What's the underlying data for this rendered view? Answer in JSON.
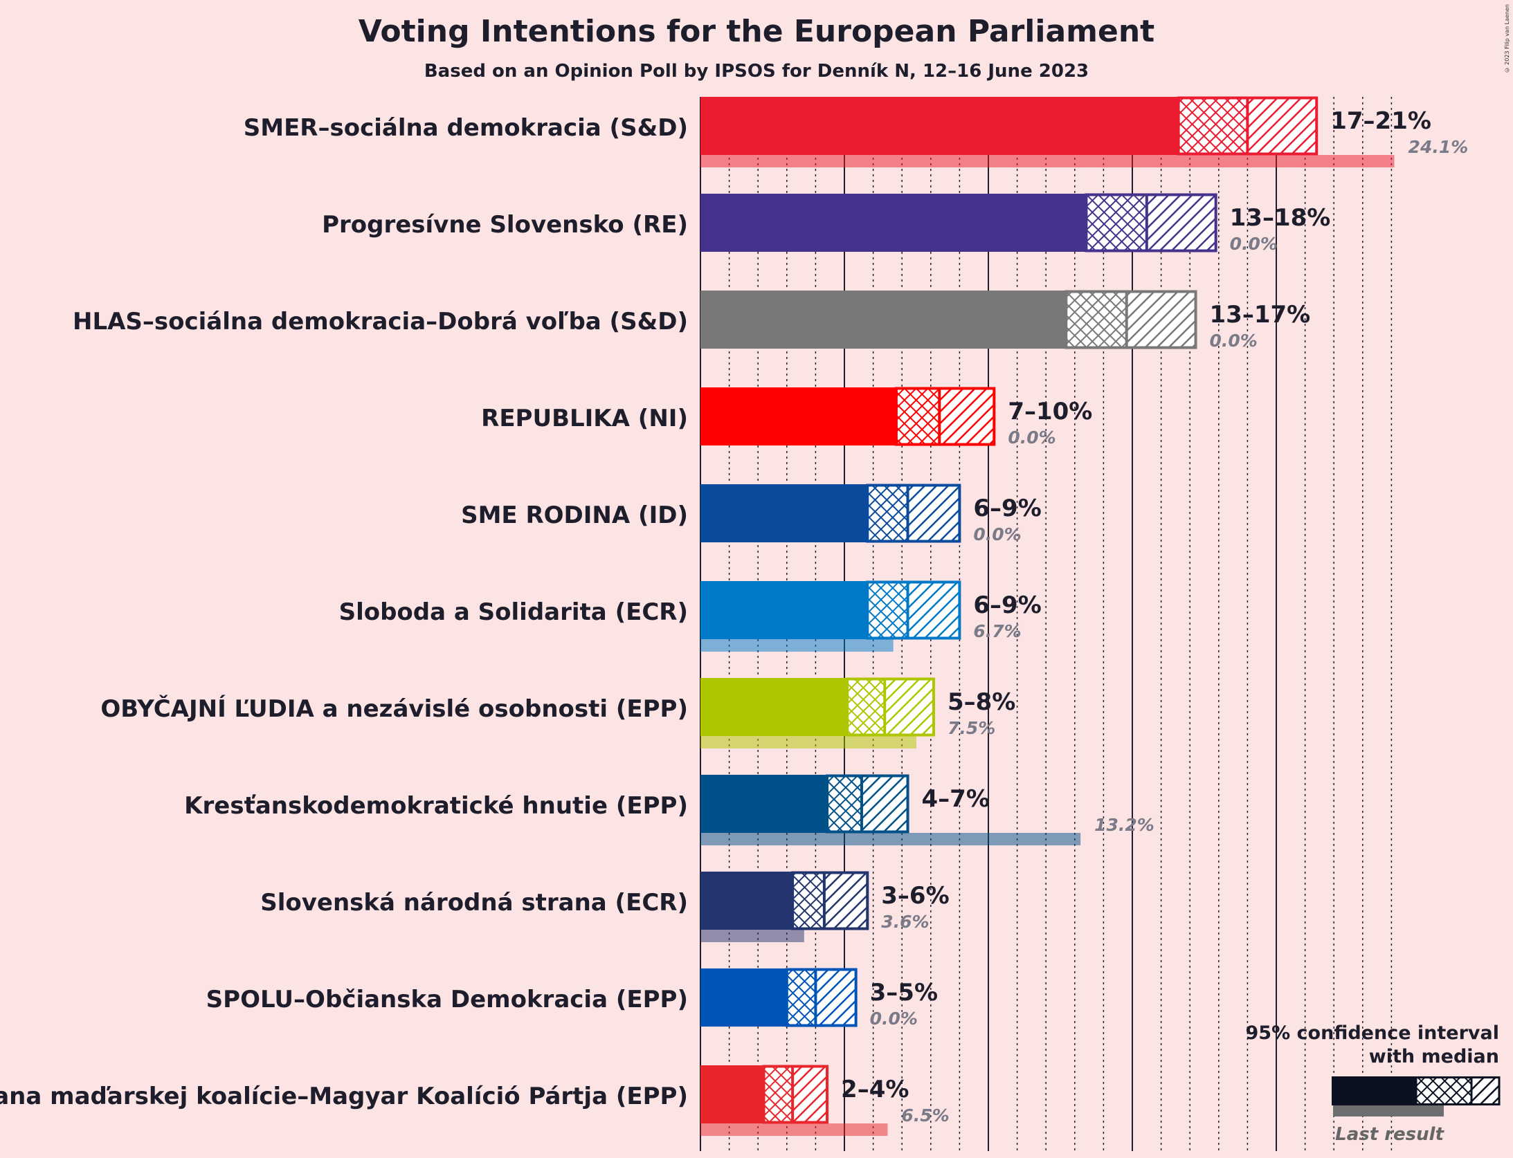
{
  "title": "Voting Intentions for the European Parliament",
  "subtitle": "Based on an Opinion Poll by IPSOS for Denník N, 12–16 June 2023",
  "copyright": "© 2023 Filip van Laenen",
  "legend": {
    "title_line1": "95% confidence interval",
    "title_line2": "with median",
    "last_result": "Last result"
  },
  "chart_data": {
    "type": "bar",
    "orientation": "horizontal",
    "x_unit": "%",
    "xlim": [
      0,
      25
    ],
    "major_gridlines": [
      5,
      10,
      15,
      20
    ],
    "minor_gridlines_step": 1,
    "parties": [
      {
        "name": "SMER–sociálna demokracia (S&D)",
        "color": "#eb1b30",
        "ci_low": 16.6,
        "median": 19.0,
        "ci_high": 21.4,
        "range_label": "17–21%",
        "last_result": 24.1,
        "last_label": "24.1%"
      },
      {
        "name": "Progresívne Slovensko (RE)",
        "color": "#44328c",
        "ci_low": 13.4,
        "median": 15.5,
        "ci_high": 17.9,
        "range_label": "13–18%",
        "last_result": 0.0,
        "last_label": "0.0%"
      },
      {
        "name": "HLAS–sociálna demokracia–Dobrá voľba (S&D)",
        "color": "#787878",
        "ci_low": 12.7,
        "median": 14.8,
        "ci_high": 17.2,
        "range_label": "13–17%",
        "last_result": 0.0,
        "last_label": "0.0%"
      },
      {
        "name": "REPUBLIKA (NI)",
        "color": "#ff0000",
        "ci_low": 6.8,
        "median": 8.3,
        "ci_high": 10.2,
        "range_label": "7–10%",
        "last_result": 0.0,
        "last_label": "0.0%"
      },
      {
        "name": "SME RODINA (ID)",
        "color": "#0a4b9e",
        "ci_low": 5.8,
        "median": 7.2,
        "ci_high": 9.0,
        "range_label": "6–9%",
        "last_result": 0.0,
        "last_label": "0.0%"
      },
      {
        "name": "Sloboda a Solidarita (ECR)",
        "color": "#0079c8",
        "ci_low": 5.8,
        "median": 7.2,
        "ci_high": 9.0,
        "range_label": "6–9%",
        "last_result": 6.7,
        "last_label": "6.7%"
      },
      {
        "name": "OBYČAJNÍ ĽUDIA a nezávislé osobnosti (EPP)",
        "color": "#aec600",
        "ci_low": 5.1,
        "median": 6.4,
        "ci_high": 8.1,
        "range_label": "5–8%",
        "last_result": 7.5,
        "last_label": "7.5%"
      },
      {
        "name": "Kresťanskodemokratické hnutie (EPP)",
        "color": "#00508a",
        "ci_low": 4.4,
        "median": 5.6,
        "ci_high": 7.2,
        "range_label": "4–7%",
        "last_result": 13.2,
        "last_label": "13.2%"
      },
      {
        "name": "Slovenská národná strana (ECR)",
        "color": "#24346e",
        "ci_low": 3.2,
        "median": 4.3,
        "ci_high": 5.8,
        "range_label": "3–6%",
        "last_result": 3.6,
        "last_label": "3.6%"
      },
      {
        "name": "SPOLU–Občianska Demokracia (EPP)",
        "color": "#0054b8",
        "ci_low": 3.0,
        "median": 4.0,
        "ci_high": 5.4,
        "range_label": "3–5%",
        "last_result": 0.0,
        "last_label": "0.0%"
      },
      {
        "name": "Strana maďarskej koalície–Magyar Koalíció Pártja (EPP)",
        "color": "#e8262b",
        "ci_low": 2.2,
        "median": 3.2,
        "ci_high": 4.4,
        "range_label": "2–4%",
        "last_result": 6.5,
        "last_label": "6.5%"
      }
    ]
  }
}
